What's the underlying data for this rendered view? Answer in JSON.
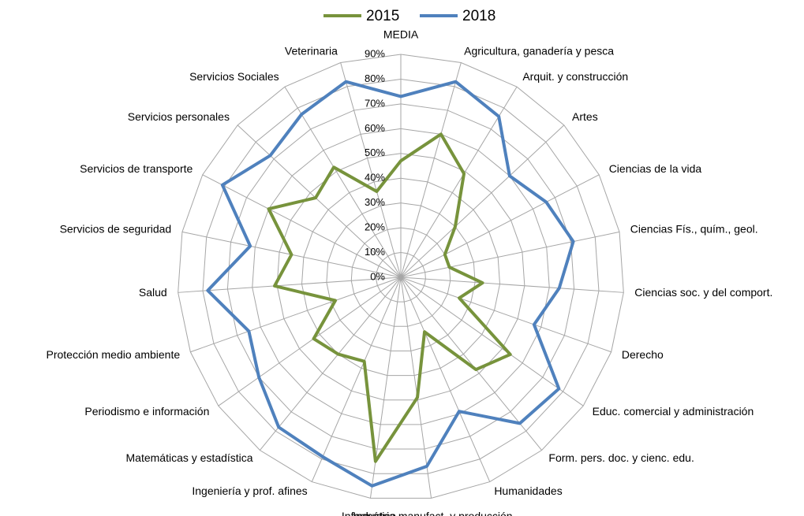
{
  "chart_data": {
    "type": "radar",
    "categories": [
      "MEDIA",
      "Agricultura, ganadería y pesca",
      "Arquit. y construcción",
      "Artes",
      "Ciencias de la vida",
      "Ciencias Fís., quím., geol.",
      "Ciencias soc. y del comport.",
      "Derecho",
      "Educ. comercial y administración",
      "Form. pers. doc. y cienc. edu.",
      "Humanidades",
      "Industria manufact. y producción",
      "Informática",
      "Ingeniería y prof. afines",
      "Matemáticas y estadística",
      "Periodismo e información",
      "Protección medio ambiente",
      "Salud",
      "Servicios de seguridad",
      "Servicios de transporte",
      "Servicios personales",
      "Servicios Sociales",
      "Veterinaria"
    ],
    "series": [
      {
        "name": "2015",
        "color": "#77933c",
        "values": [
          47,
          60,
          49,
          30,
          20,
          20,
          33,
          25,
          54,
          48,
          24,
          49,
          75,
          37,
          40,
          43,
          28,
          51,
          45,
          60,
          47,
          52,
          36
        ]
      },
      {
        "name": "2018",
        "color": "#4f81bd",
        "values": [
          73,
          82,
          76,
          60,
          66,
          71,
          64,
          57,
          78,
          76,
          59,
          77,
          85,
          79,
          78,
          70,
          65,
          78,
          62,
          81,
          72,
          77,
          82
        ]
      }
    ],
    "ylim": [
      0,
      90
    ],
    "yticks": [
      {
        "value": 0,
        "label": "0%"
      },
      {
        "value": 10,
        "label": "10%"
      },
      {
        "value": 20,
        "label": "20%"
      },
      {
        "value": 30,
        "label": "30%"
      },
      {
        "value": 40,
        "label": "40%"
      },
      {
        "value": 50,
        "label": "50%"
      },
      {
        "value": 60,
        "label": "60%"
      },
      {
        "value": 70,
        "label": "70%"
      },
      {
        "value": 80,
        "label": "80%"
      },
      {
        "value": 90,
        "label": "90%"
      }
    ],
    "grid": true,
    "legend": "top"
  }
}
